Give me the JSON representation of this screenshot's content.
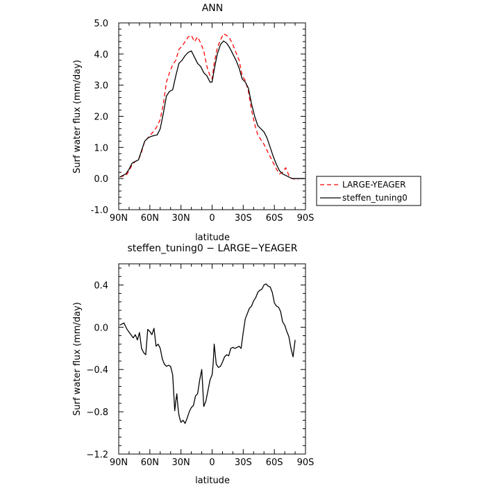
{
  "chart_data": [
    {
      "type": "line",
      "title": "ANN",
      "xlabel": "latitude",
      "ylabel": "Surf water flux (mm/day)",
      "xlim": [
        90,
        -90
      ],
      "ylim": [
        -1.0,
        5.0
      ],
      "xticks": [
        90,
        60,
        30,
        0,
        -30,
        -60,
        -90
      ],
      "xtick_labels": [
        "90N",
        "60N",
        "30N",
        "0",
        "30S",
        "60S",
        "90S"
      ],
      "yticks": [
        -1.0,
        0.0,
        1.0,
        2.0,
        3.0,
        4.0,
        5.0
      ],
      "ytick_labels": [
        "-1.0",
        "0.0",
        "1.0",
        "2.0",
        "3.0",
        "4.0",
        "5.0"
      ],
      "legend_position": "right",
      "series": [
        {
          "name": "LARGE-YEAGER",
          "color": "#ff0000",
          "dash": "dashed",
          "x": [
            89,
            86,
            83,
            80,
            77,
            74,
            71,
            68,
            65,
            62,
            59,
            56,
            53,
            50,
            47,
            44,
            41,
            38,
            35,
            32,
            29,
            26,
            23,
            20,
            17,
            14,
            11,
            8,
            5,
            2,
            0,
            -2,
            -5,
            -8,
            -11,
            -14,
            -17,
            -20,
            -23,
            -26,
            -29,
            -32,
            -35,
            -38,
            -41,
            -44,
            -47,
            -50,
            -53,
            -56,
            -59,
            -62,
            -65,
            -68,
            -71,
            -74,
            -77,
            -80,
            -83
          ],
          "y": [
            0.05,
            0.08,
            0.1,
            0.25,
            0.45,
            0.55,
            0.6,
            0.85,
            1.2,
            1.3,
            1.42,
            1.52,
            1.68,
            1.9,
            2.4,
            3.1,
            3.4,
            3.65,
            3.8,
            4.15,
            4.25,
            4.4,
            4.55,
            4.6,
            4.4,
            4.55,
            4.35,
            4.1,
            3.6,
            3.3,
            3.2,
            3.7,
            4.2,
            4.45,
            4.65,
            4.6,
            4.5,
            4.3,
            4.05,
            3.8,
            3.3,
            3.15,
            2.8,
            2.2,
            1.75,
            1.4,
            1.25,
            1.1,
            0.9,
            0.7,
            0.5,
            0.3,
            0.15,
            0.2,
            0.35,
            0.1,
            0.0,
            -0.02,
            -0.02
          ]
        },
        {
          "name": "steffen_tuning0",
          "color": "#000000",
          "dash": "solid",
          "x": [
            89,
            86,
            83,
            80,
            77,
            74,
            71,
            68,
            65,
            62,
            59,
            56,
            53,
            50,
            47,
            44,
            41,
            38,
            35,
            32,
            29,
            26,
            23,
            20,
            17,
            14,
            11,
            8,
            5,
            2,
            0,
            -2,
            -5,
            -8,
            -11,
            -14,
            -17,
            -20,
            -23,
            -26,
            -29,
            -32,
            -35,
            -38,
            -41,
            -44,
            -47,
            -50,
            -53,
            -56,
            -59,
            -62,
            -65,
            -68,
            -71,
            -74,
            -77,
            -80,
            -83,
            -86,
            -89
          ],
          "y": [
            0.05,
            0.1,
            0.15,
            0.3,
            0.5,
            0.55,
            0.6,
            0.9,
            1.2,
            1.3,
            1.35,
            1.38,
            1.4,
            1.6,
            2.1,
            2.65,
            2.8,
            2.85,
            3.3,
            3.7,
            3.8,
            3.95,
            4.05,
            4.1,
            3.9,
            3.7,
            3.6,
            3.4,
            3.3,
            3.1,
            3.1,
            3.5,
            4.0,
            4.3,
            4.42,
            4.35,
            4.2,
            4.0,
            3.8,
            3.55,
            3.2,
            3.1,
            2.9,
            2.4,
            2.0,
            1.7,
            1.6,
            1.5,
            1.3,
            1.0,
            0.7,
            0.45,
            0.25,
            0.15,
            0.1,
            0.05,
            0.0,
            0.0,
            0.0,
            0.0,
            0.0
          ]
        }
      ]
    },
    {
      "type": "line",
      "title": "steffen_tuning0 − LARGE−YEAGER",
      "xlabel": "latitude",
      "ylabel": "Surf water flux (mm/day)",
      "xlim": [
        90,
        -90
      ],
      "ylim": [
        -1.2,
        0.6
      ],
      "xticks": [
        90,
        60,
        30,
        0,
        -30,
        -60,
        -90
      ],
      "xtick_labels": [
        "90N",
        "60N",
        "30N",
        "0",
        "30S",
        "60S",
        "90S"
      ],
      "yticks": [
        -1.2,
        -0.8,
        -0.4,
        0.0,
        0.4
      ],
      "ytick_labels": [
        "−1.2",
        "−0.8",
        "−0.4",
        "0.0",
        "0.4"
      ],
      "series": [
        {
          "name": "",
          "color": "#000000",
          "dash": "solid",
          "x": [
            89,
            85,
            82,
            79,
            76,
            74,
            72,
            70,
            68,
            66,
            64,
            62,
            60,
            58,
            56,
            54,
            52,
            50,
            48,
            46,
            44,
            42,
            40,
            38,
            36,
            35,
            34,
            33,
            32,
            31,
            30,
            28,
            26,
            24,
            22,
            20,
            18,
            16,
            14,
            12,
            10,
            8,
            6,
            4,
            2,
            0,
            -1,
            -2,
            -4,
            -6,
            -8,
            -10,
            -12,
            -14,
            -16,
            -18,
            -20,
            -22,
            -24,
            -26,
            -28,
            -30,
            -32,
            -34,
            -36,
            -38,
            -40,
            -42,
            -44,
            -46,
            -48,
            -50,
            -52,
            -54,
            -56,
            -58,
            -60,
            -62,
            -64,
            -66,
            -68,
            -70,
            -72,
            -74,
            -76,
            -78,
            -80
          ],
          "y": [
            0.02,
            0.04,
            -0.02,
            -0.06,
            -0.1,
            -0.07,
            -0.12,
            -0.05,
            -0.2,
            -0.24,
            -0.26,
            -0.02,
            -0.04,
            -0.07,
            -0.01,
            -0.18,
            -0.16,
            -0.2,
            -0.3,
            -0.35,
            -0.37,
            -0.36,
            -0.37,
            -0.45,
            -0.79,
            -0.7,
            -0.63,
            -0.75,
            -0.83,
            -0.87,
            -0.9,
            -0.88,
            -0.91,
            -0.86,
            -0.8,
            -0.76,
            -0.74,
            -0.65,
            -0.63,
            -0.5,
            -0.4,
            -0.75,
            -0.7,
            -0.6,
            -0.5,
            -0.45,
            -0.35,
            -0.16,
            -0.35,
            -0.38,
            -0.37,
            -0.33,
            -0.28,
            -0.26,
            -0.27,
            -0.2,
            -0.19,
            -0.2,
            -0.19,
            -0.18,
            -0.2,
            -0.05,
            0.08,
            0.13,
            0.18,
            0.2,
            0.25,
            0.28,
            0.33,
            0.35,
            0.36,
            0.4,
            0.41,
            0.39,
            0.38,
            0.33,
            0.23,
            0.2,
            0.19,
            0.15,
            0.05,
            0.02,
            -0.04,
            -0.09,
            -0.2,
            -0.28,
            -0.12
          ]
        }
      ]
    }
  ]
}
